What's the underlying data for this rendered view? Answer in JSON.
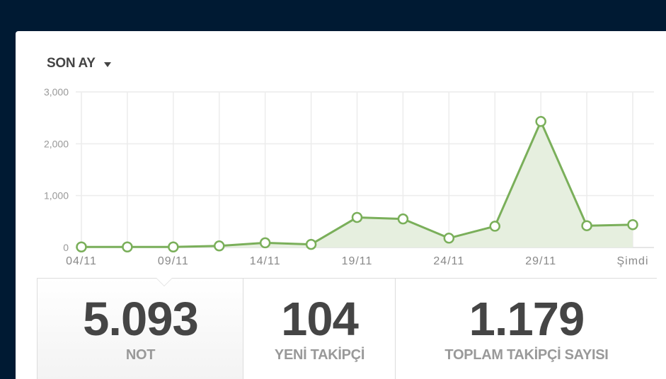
{
  "period": {
    "label": "SON AY"
  },
  "chart_data": {
    "type": "area",
    "x_labels": [
      "04/11",
      "",
      "09/11",
      "",
      "14/11",
      "",
      "19/11",
      "",
      "24/11",
      "",
      "29/11",
      "",
      "Şimdi"
    ],
    "values": [
      10,
      10,
      10,
      30,
      90,
      60,
      580,
      550,
      180,
      410,
      2430,
      420,
      440
    ],
    "yticks": [
      "3,000",
      "2,000",
      "1,000",
      "0"
    ],
    "ytick_values": [
      3000,
      2000,
      1000,
      0
    ],
    "ylim": [
      0,
      3000
    ],
    "grid": true,
    "line_color": "#7aaf5a",
    "fill_color": "#e6efdf"
  },
  "stats": [
    {
      "value": "5.093",
      "label": "NOT"
    },
    {
      "value": "104",
      "label": "YENİ TAKİPÇİ"
    },
    {
      "value": "1.179",
      "label": "TOPLAM TAKİPÇİ SAYISI"
    }
  ]
}
